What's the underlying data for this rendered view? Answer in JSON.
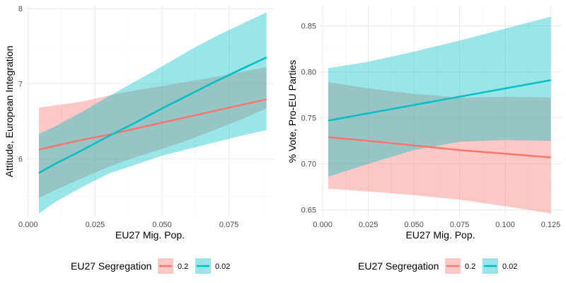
{
  "chart_data": [
    {
      "type": "line",
      "xlabel": "EU27 Mig. Pop.",
      "ylabel": "Attitude, European Integration",
      "xlim": [
        -0.001,
        0.092
      ],
      "ylim": [
        5.22,
        8.04
      ],
      "xticks": [
        0.0,
        0.025,
        0.05,
        0.075
      ],
      "xtick_labels": [
        "0.000",
        "0.025",
        "0.050",
        "0.075"
      ],
      "yticks": [
        6,
        7,
        8
      ],
      "ytick_labels": [
        "6",
        "7",
        "8"
      ],
      "grid": true,
      "series": [
        {
          "name": "0.2",
          "color": "#F8766D",
          "x": [
            0.004,
            0.01,
            0.02,
            0.03,
            0.04,
            0.05,
            0.06,
            0.07,
            0.08,
            0.089
          ],
          "y": [
            6.12,
            6.17,
            6.25,
            6.32,
            6.4,
            6.48,
            6.56,
            6.64,
            6.72,
            6.79
          ],
          "lower": [
            5.48,
            5.58,
            5.74,
            5.89,
            6.02,
            6.13,
            6.25,
            6.39,
            6.53,
            6.67
          ],
          "upper": [
            6.68,
            6.71,
            6.76,
            6.84,
            6.91,
            6.97,
            7.03,
            7.09,
            7.16,
            7.22
          ]
        },
        {
          "name": "0.02",
          "color": "#00BFC4",
          "x": [
            0.004,
            0.01,
            0.02,
            0.03,
            0.04,
            0.05,
            0.06,
            0.07,
            0.08,
            0.089
          ],
          "y": [
            5.81,
            5.93,
            6.11,
            6.3,
            6.48,
            6.67,
            6.85,
            7.03,
            7.2,
            7.35
          ],
          "lower": [
            5.27,
            5.42,
            5.62,
            5.8,
            5.92,
            6.04,
            6.13,
            6.22,
            6.31,
            6.38
          ],
          "upper": [
            6.33,
            6.43,
            6.62,
            6.83,
            7.03,
            7.23,
            7.44,
            7.63,
            7.8,
            7.95
          ]
        }
      ]
    },
    {
      "type": "line",
      "xlabel": "EU27 Mig. Pop.",
      "ylabel": "% Vote, Pro-EU Parties",
      "xlim": [
        -0.002,
        0.131
      ],
      "ylim": [
        0.642,
        0.872
      ],
      "xticks": [
        0.0,
        0.025,
        0.05,
        0.075,
        0.1,
        0.125
      ],
      "xtick_labels": [
        "0.000",
        "0.025",
        "0.050",
        "0.075",
        "0.100",
        "0.125"
      ],
      "yticks": [
        0.65,
        0.7,
        0.75,
        0.8,
        0.85
      ],
      "ytick_labels": [
        "0.65",
        "0.70",
        "0.75",
        "0.80",
        "0.85"
      ],
      "grid": true,
      "series": [
        {
          "name": "0.2",
          "color": "#F8766D",
          "x": [
            0.003,
            0.025,
            0.05,
            0.075,
            0.1,
            0.125
          ],
          "y": [
            0.729,
            0.725,
            0.72,
            0.715,
            0.711,
            0.707
          ],
          "lower": [
            0.673,
            0.67,
            0.666,
            0.661,
            0.654,
            0.646
          ],
          "upper": [
            0.789,
            0.782,
            0.776,
            0.772,
            0.773,
            0.772
          ]
        },
        {
          "name": "0.02",
          "color": "#00BFC4",
          "x": [
            0.003,
            0.025,
            0.05,
            0.075,
            0.1,
            0.125
          ],
          "y": [
            0.747,
            0.755,
            0.764,
            0.773,
            0.782,
            0.791
          ],
          "lower": [
            0.686,
            0.7,
            0.715,
            0.724,
            0.726,
            0.725
          ],
          "upper": [
            0.804,
            0.811,
            0.822,
            0.834,
            0.847,
            0.86
          ]
        }
      ]
    }
  ],
  "legend": {
    "title": "EU27 Segregation",
    "position": "bottom",
    "items": [
      {
        "label": "0.2",
        "color": "#F8766D"
      },
      {
        "label": "0.02",
        "color": "#00BFC4"
      }
    ]
  }
}
